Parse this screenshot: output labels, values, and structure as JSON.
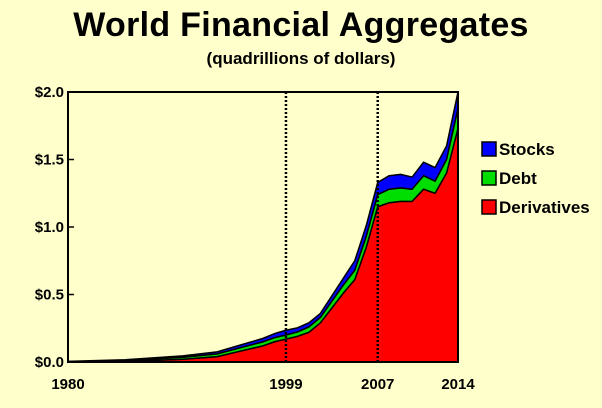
{
  "chart_data": {
    "type": "area",
    "stacked": true,
    "title": "World Financial Aggregates",
    "subtitle": "(quadrillions of dollars)",
    "xlim": [
      1980,
      2014
    ],
    "ylim": [
      0,
      2.0
    ],
    "y_ticks": [
      "$0.0",
      "$0.5",
      "$1.0",
      "$1.5",
      "$2.0"
    ],
    "y_tick_values": [
      0,
      0.5,
      1.0,
      1.5,
      2.0
    ],
    "x_ticks": [
      "1980",
      "1999",
      "2007",
      "2014"
    ],
    "x_tick_values": [
      1980,
      1999,
      2007,
      2014
    ],
    "reference_lines": [
      1999,
      2007
    ],
    "grid": false,
    "legend_position": "right",
    "x": [
      1980,
      1985,
      1990,
      1993,
      1995,
      1997,
      1998,
      1999,
      2000,
      2001,
      2002,
      2003,
      2004,
      2005,
      2006,
      2007,
      2008,
      2009,
      2010,
      2011,
      2012,
      2013,
      2014
    ],
    "series": [
      {
        "name": "Derivatives",
        "color": "#ff0000",
        "values": [
          0.0,
          0.005,
          0.02,
          0.04,
          0.08,
          0.12,
          0.15,
          0.17,
          0.19,
          0.22,
          0.29,
          0.4,
          0.51,
          0.61,
          0.85,
          1.15,
          1.18,
          1.19,
          1.19,
          1.28,
          1.25,
          1.4,
          1.73
        ]
      },
      {
        "name": "Debt",
        "color": "#00dd00",
        "values": [
          0.003,
          0.007,
          0.015,
          0.02,
          0.025,
          0.03,
          0.03,
          0.03,
          0.033,
          0.04,
          0.04,
          0.05,
          0.06,
          0.07,
          0.08,
          0.09,
          0.1,
          0.1,
          0.09,
          0.1,
          0.09,
          0.1,
          0.15
        ]
      },
      {
        "name": "Stocks",
        "color": "#0000ff",
        "values": [
          0.002,
          0.005,
          0.01,
          0.015,
          0.02,
          0.025,
          0.03,
          0.035,
          0.03,
          0.03,
          0.03,
          0.04,
          0.05,
          0.07,
          0.08,
          0.09,
          0.1,
          0.1,
          0.09,
          0.1,
          0.1,
          0.1,
          0.12
        ]
      }
    ]
  }
}
